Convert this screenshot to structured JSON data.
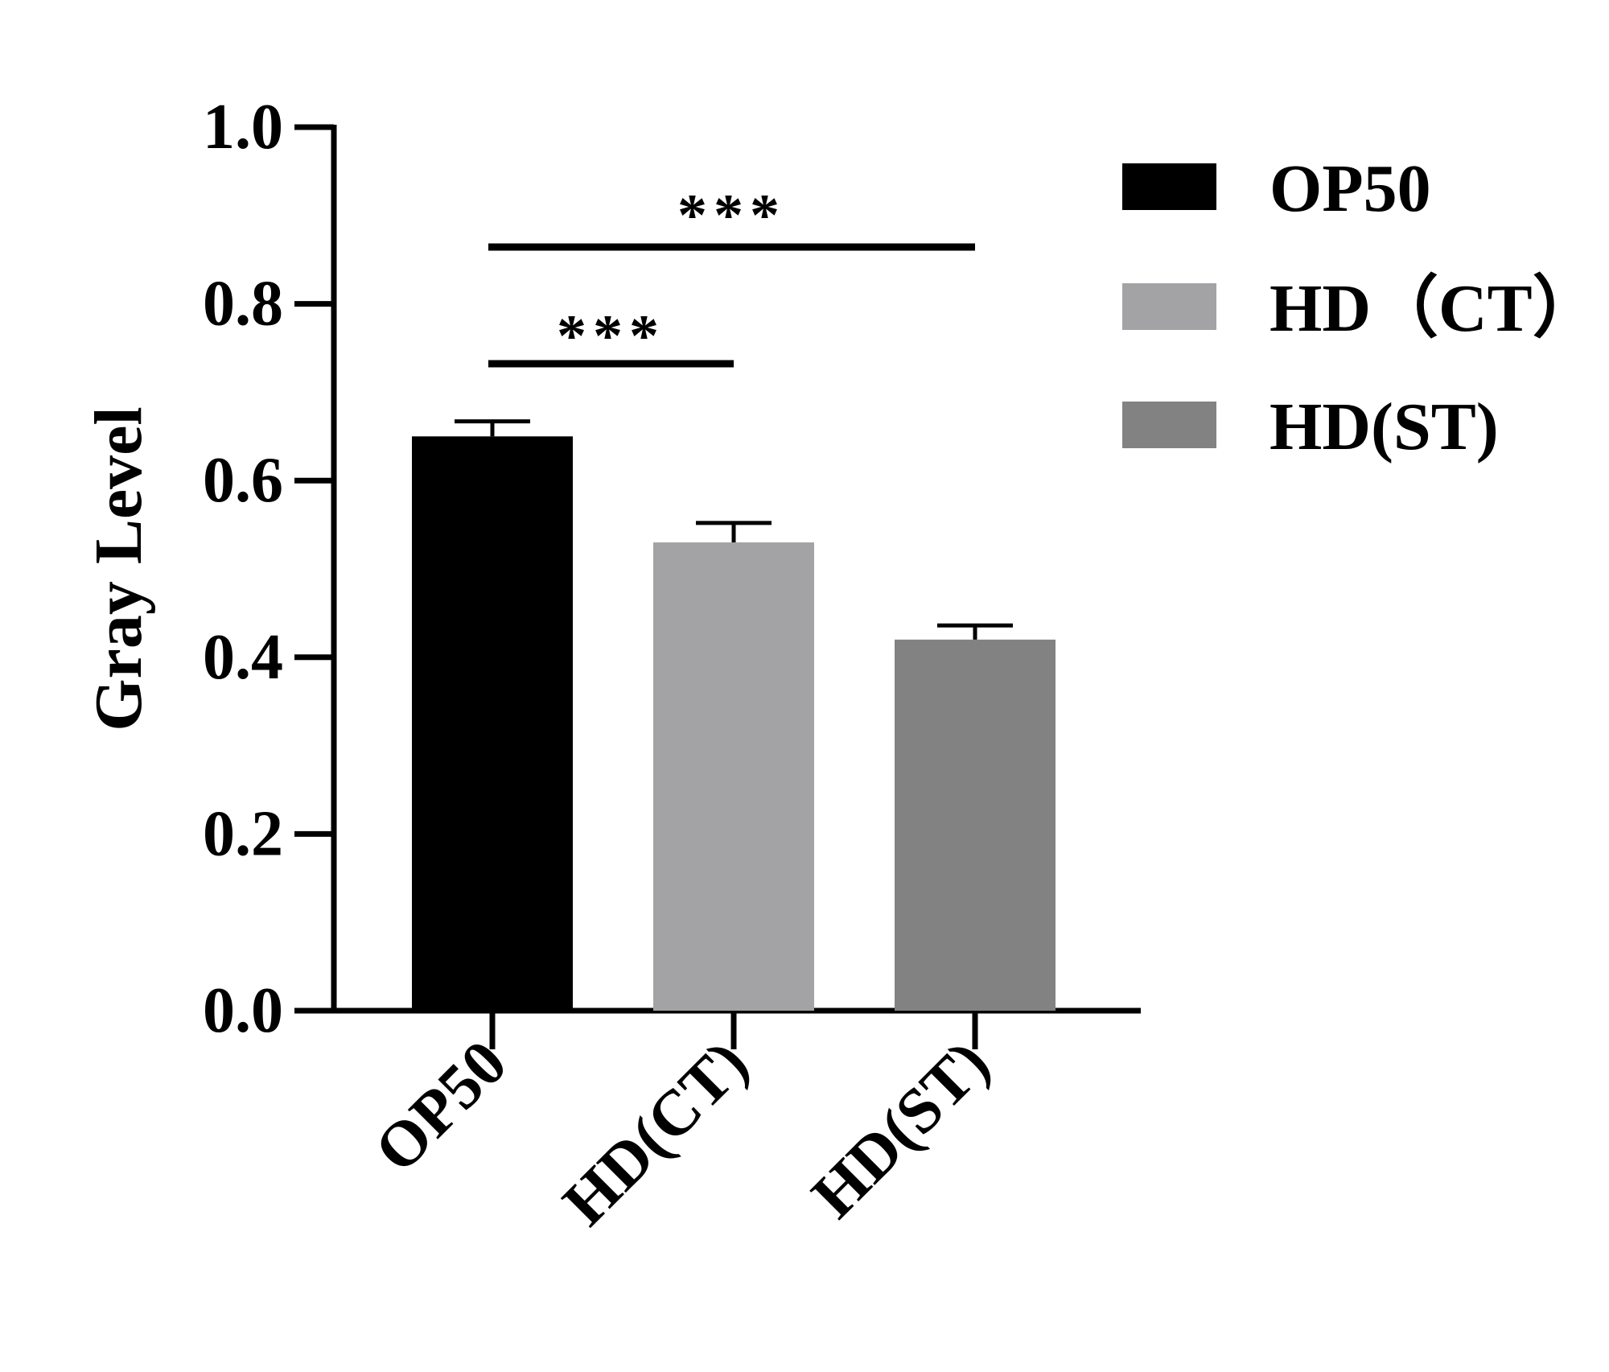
{
  "chart_data": {
    "type": "bar",
    "categories": [
      "OP50",
      "HD(CT)",
      "HD(ST)"
    ],
    "values": [
      0.65,
      0.53,
      0.42
    ],
    "errors": [
      0.017,
      0.022,
      0.016
    ],
    "colors": [
      "#000000",
      "#a3a3a6",
      "#828282"
    ],
    "ylabel": "Gray Level",
    "ylim": [
      0,
      1.0
    ],
    "yticks": [
      0.0,
      0.2,
      0.4,
      0.6,
      0.8,
      1.0
    ],
    "ytick_labels": [
      "0.0",
      "0.2",
      "0.4",
      "0.6",
      "0.8",
      "1.0"
    ],
    "legend": {
      "position": "top-right",
      "entries": [
        "OP50",
        "HD（CT）",
        "HD(ST)"
      ]
    },
    "significance": [
      {
        "from": 0,
        "to": 1,
        "label": "***"
      },
      {
        "from": 0,
        "to": 2,
        "label": "***"
      }
    ]
  }
}
